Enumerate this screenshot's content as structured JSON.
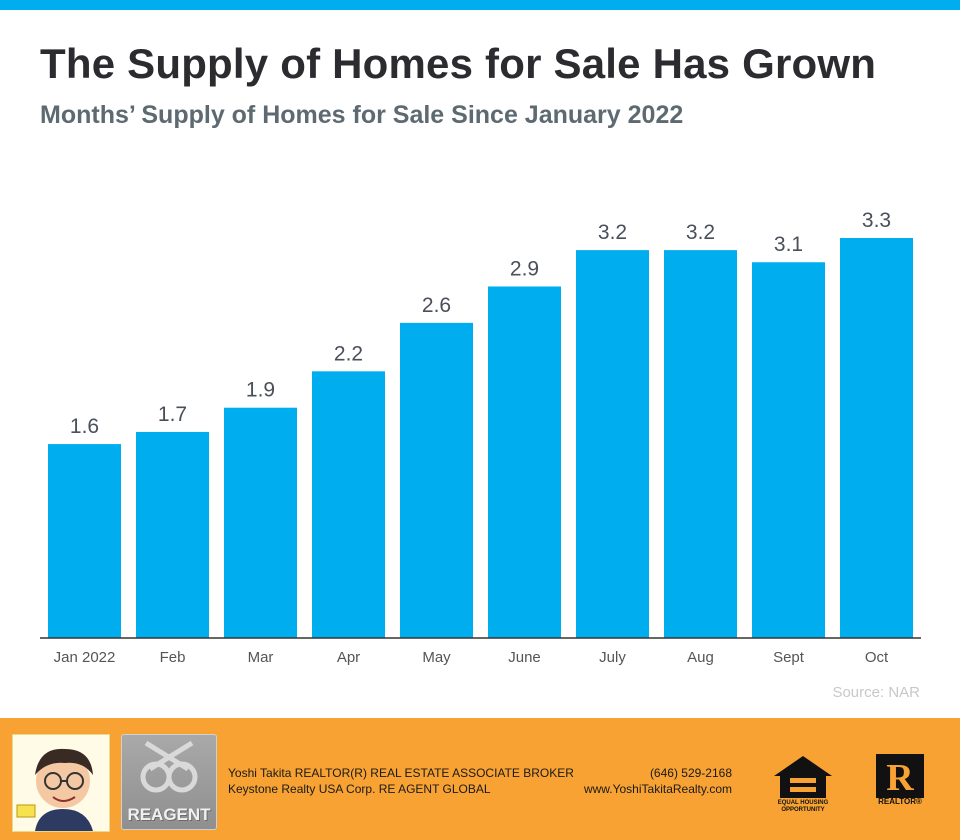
{
  "header": {
    "title": "The Supply of Homes for Sale Has Grown",
    "subtitle": "Months’ Supply of Homes for Sale Since January 2022",
    "accent_color": "#00aeef"
  },
  "chart_data": {
    "type": "bar",
    "title": "The Supply of Homes for Sale Has Grown",
    "subtitle": "Months’ Supply of Homes for Sale Since January 2022",
    "categories": [
      "Jan 2022",
      "Feb",
      "Mar",
      "Apr",
      "May",
      "June",
      "July",
      "Aug",
      "Sept",
      "Oct"
    ],
    "values": [
      1.6,
      1.7,
      1.9,
      2.2,
      2.6,
      2.9,
      3.2,
      3.2,
      3.1,
      3.3
    ],
    "data_labels": [
      "1.6",
      "1.7",
      "1.9",
      "2.2",
      "2.6",
      "2.9",
      "3.2",
      "3.2",
      "3.1",
      "3.3"
    ],
    "ylim": [
      0,
      3.3
    ],
    "grid": false,
    "legend": "none",
    "bar_color": "#00aeef",
    "source": "Source: NAR"
  },
  "footer": {
    "background_color": "#f7a233",
    "agent_line": "Yoshi Takita REALTOR(R) REAL ESTATE ASSOCIATE BROKER",
    "company_line": "Keystone Realty USA Corp.  RE AGENT GLOBAL",
    "phone": "(646) 529-2168",
    "website": "www.YoshiTakitaRealty.com",
    "brand_logo_text": "REAGENT",
    "equal_housing_label": "EQUAL HOUSING OPPORTUNITY",
    "realtor_label": "REALTOR®",
    "realtor_mark": "R"
  }
}
